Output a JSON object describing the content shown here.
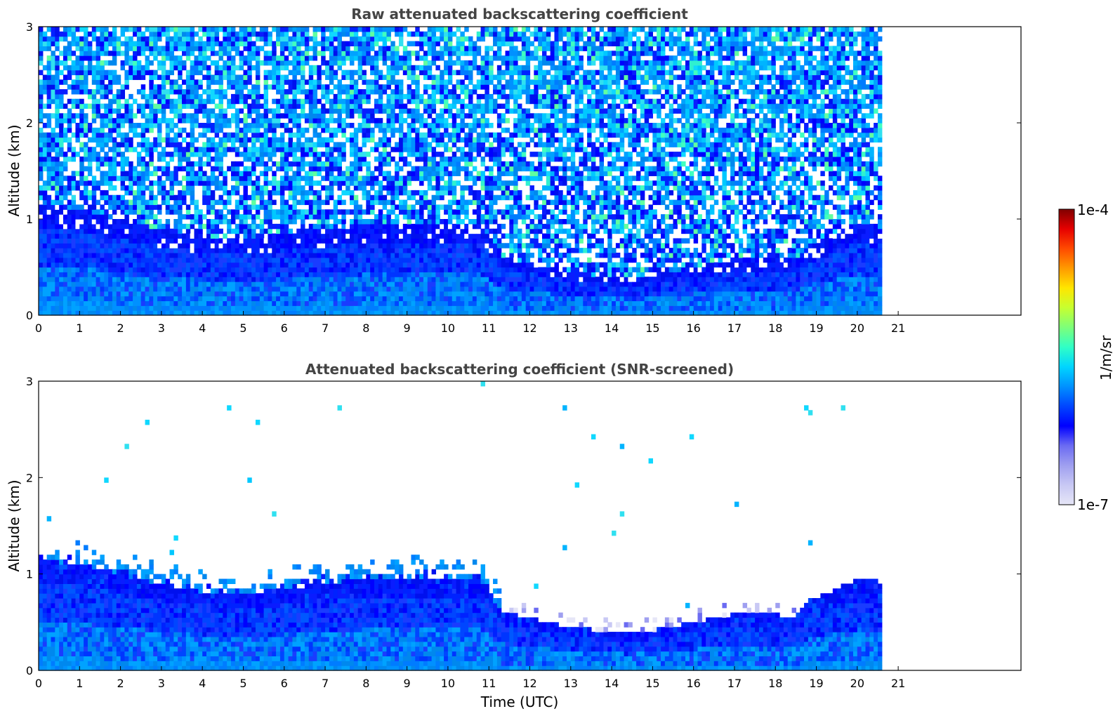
{
  "colorbar": {
    "max_label": "1e-4",
    "min_label": "1e-7",
    "unit_label": "1/m/sr",
    "vmin": 1e-07,
    "vmax": 0.0001,
    "scale": "log",
    "colormap": "jet with light-lavender low end",
    "colors": [
      "#e6e6f7",
      "#c8c8f4",
      "#9f9ff0",
      "#6b6bf2",
      "#0000ff",
      "#0046ff",
      "#0091ff",
      "#00d5ff",
      "#30ffc6",
      "#7dff7a",
      "#c6ff30",
      "#ffe600",
      "#ff9a00",
      "#ff4a00",
      "#e60000",
      "#800000"
    ]
  },
  "chart_data": [
    {
      "type": "heatmap",
      "title": "Raw attenuated backscattering coefficient",
      "xlabel": "",
      "ylabel": "Altitude (km)",
      "xlim": [
        0,
        24
      ],
      "ylim": [
        0,
        3
      ],
      "xticks": [
        "0",
        "1",
        "2",
        "3",
        "4",
        "5",
        "6",
        "7",
        "8",
        "9",
        "10",
        "11",
        "12",
        "13",
        "14",
        "15",
        "16",
        "17",
        "18",
        "19",
        "20",
        "21"
      ],
      "yticks": [
        "0",
        "1",
        "2",
        "3"
      ],
      "data_extent_time": [
        0,
        20.6
      ],
      "screened": false,
      "grid": false
    },
    {
      "type": "heatmap",
      "title": "Attenuated backscattering coefficient (SNR-screened)",
      "xlabel": "Time (UTC)",
      "ylabel": "Altitude (km)",
      "xlim": [
        0,
        24
      ],
      "ylim": [
        0,
        3
      ],
      "xticks": [
        "0",
        "1",
        "2",
        "3",
        "4",
        "5",
        "6",
        "7",
        "8",
        "9",
        "10",
        "11",
        "12",
        "13",
        "14",
        "15",
        "16",
        "17",
        "18",
        "19",
        "20",
        "21"
      ],
      "yticks": [
        "0",
        "1",
        "2",
        "3"
      ],
      "data_extent_time": [
        0,
        20.6
      ],
      "screened": true,
      "grid": false
    }
  ],
  "layer_top_km": {
    "time": [
      0,
      1,
      2,
      3,
      4,
      5,
      6,
      7,
      8,
      9,
      10,
      10.8,
      11.3,
      12,
      13,
      14,
      14.5,
      15,
      16,
      17,
      18,
      18.5,
      18.8,
      19.5,
      20,
      20.6
    ],
    "top": [
      1.15,
      1.1,
      1.0,
      0.9,
      0.82,
      0.78,
      0.85,
      0.9,
      0.95,
      0.95,
      0.95,
      0.95,
      0.62,
      0.55,
      0.45,
      0.4,
      0.38,
      0.42,
      0.5,
      0.58,
      0.58,
      0.55,
      0.72,
      0.85,
      0.95,
      0.92
    ]
  }
}
